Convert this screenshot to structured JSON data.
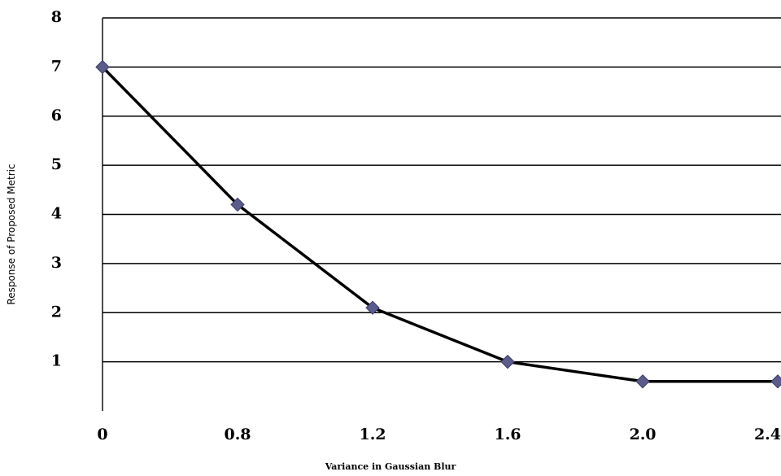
{
  "chart_data": {
    "type": "line",
    "title": "",
    "xlabel": "Variance in Gaussian Blur",
    "ylabel": "Response of Proposed Metric",
    "x_tick_labels": [
      "0",
      "0.8",
      "1.2",
      "1.6",
      "2.0",
      "2.4"
    ],
    "y_tick_labels": [
      "1",
      "2",
      "3",
      "4",
      "5",
      "6",
      "7",
      "8"
    ],
    "ylim": [
      0,
      8
    ],
    "grid": "horizontal",
    "legend": "none",
    "series": [
      {
        "x": [
          "0",
          "0.8",
          "1.2",
          "1.6",
          "2.0",
          "2.4"
        ],
        "values": [
          7.0,
          4.2,
          2.1,
          1.0,
          0.6,
          0.6
        ],
        "line_color": "#000000",
        "marker": "diamond",
        "marker_color": "#5b5b8c"
      }
    ]
  }
}
